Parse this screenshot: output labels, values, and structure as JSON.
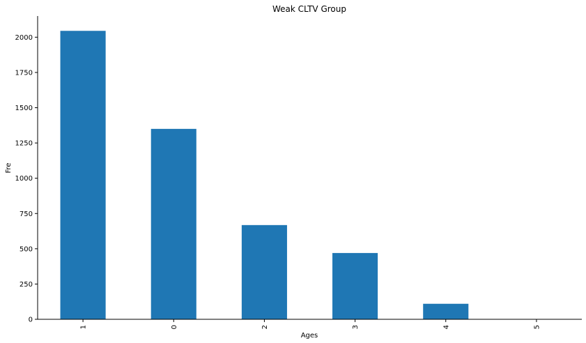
{
  "chart_data": {
    "type": "bar",
    "title": "Weak CLTV Group",
    "xlabel": "Ages",
    "ylabel": "Fre",
    "categories": [
      "1",
      "0",
      "2",
      "3",
      "4",
      "5"
    ],
    "values": [
      2045,
      1350,
      668,
      470,
      110,
      1
    ],
    "ylim": [
      0,
      2150
    ],
    "yticks": [
      "0",
      "250",
      "500",
      "750",
      "1000",
      "1250",
      "1500",
      "1750",
      "2000"
    ],
    "grid": false,
    "bar_color": "#1f77b4",
    "xtick_rotation": "vertical"
  }
}
